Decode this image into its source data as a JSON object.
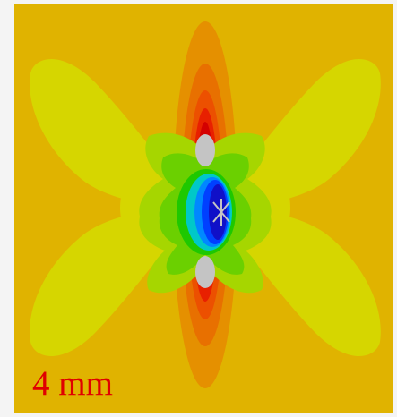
{
  "image": {
    "scale_label": "4 mm",
    "colors": {
      "frame": "#f4f4f4",
      "background": "#e0b300",
      "lobes": "#d6d600",
      "lobe_edge": "#e6e600",
      "lateral_outer": "#a6d600",
      "lateral_inner": "#6bd000",
      "green": "#1ec800",
      "cyan": "#00c8c8",
      "sky": "#0088ff",
      "blue": "#0040ff",
      "navy": "#1010c8",
      "axial_outer": "#e59000",
      "axial_mid": "#e87000",
      "axial_inner": "#ec5000",
      "red": "#e82000",
      "deep_red": "#d40000",
      "hole": "#c4c4c4",
      "label": "#e00000"
    }
  }
}
